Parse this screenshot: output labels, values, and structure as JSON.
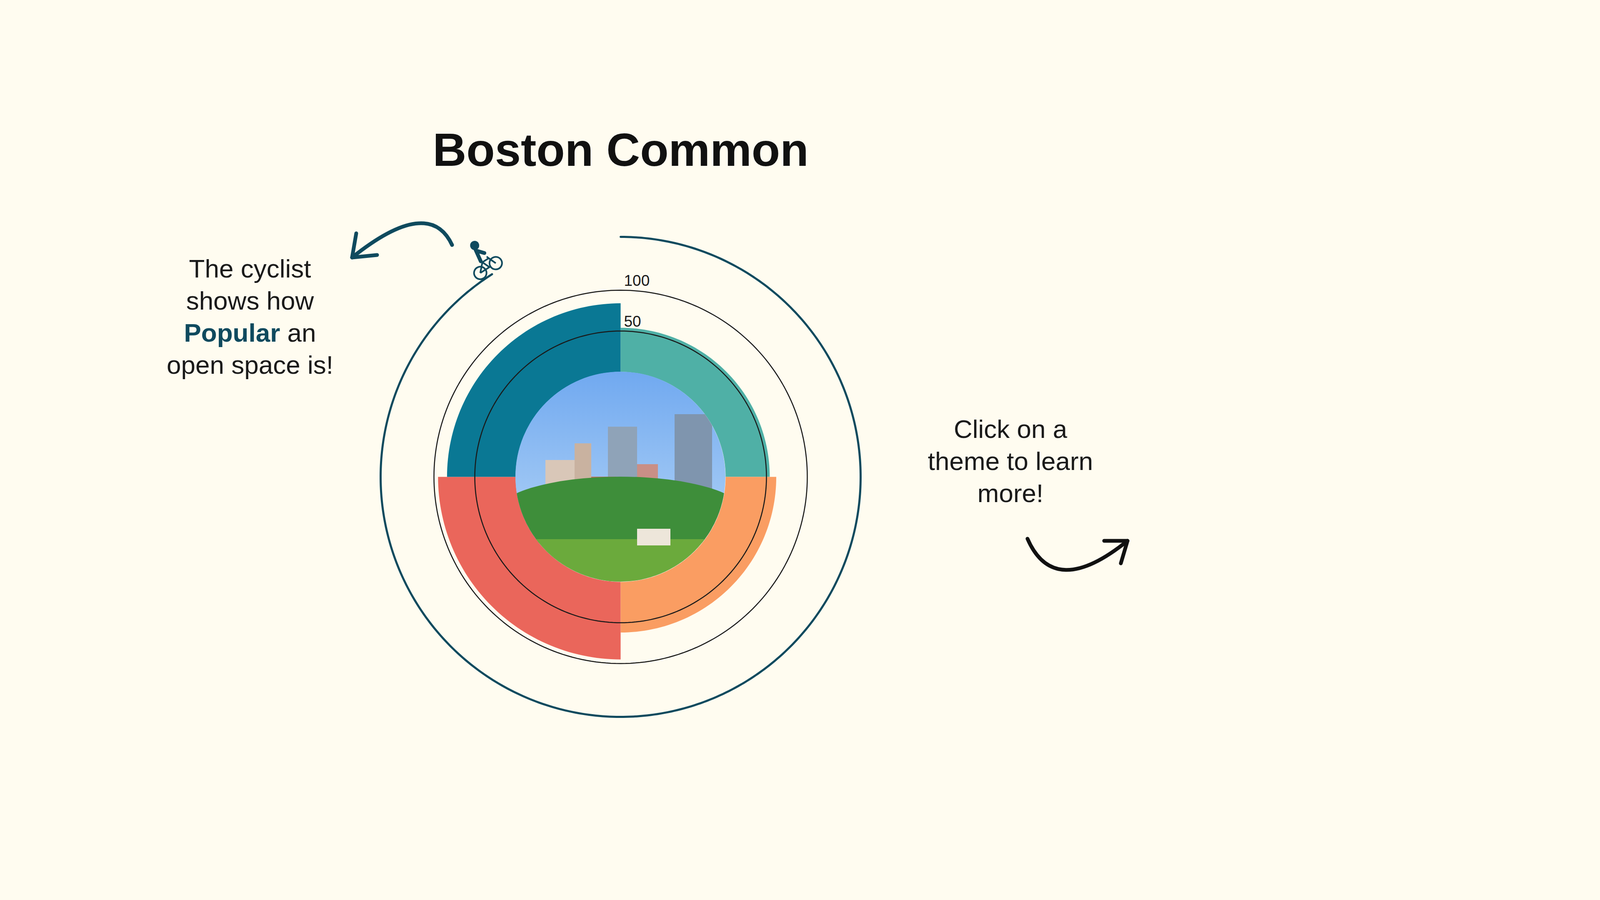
{
  "chart_data": {
    "type": "radial_bar",
    "title": "Boston Common",
    "categories": [
      null,
      null,
      null,
      null
    ],
    "values": [
      54,
      62,
      95,
      84
    ],
    "colors": [
      "#4FB0A6",
      "#FA9D62",
      "#EA665B",
      "#0A7894"
    ],
    "ylim": [
      0,
      100
    ],
    "yticks": [
      50,
      100
    ],
    "popularity": 91,
    "popularity_lim": [
      0,
      100
    ],
    "popularity_color": "#0F4A5E",
    "annotations": [
      {
        "lines": [
          [
            "The cyclist"
          ],
          [
            "shows how"
          ],
          [
            "Popular",
            " an"
          ],
          [
            "open space is!"
          ]
        ],
        "highlight": "Popular"
      },
      {
        "lines": [
          [
            "Click on a"
          ],
          [
            "theme to learn"
          ],
          [
            "more!"
          ]
        ]
      }
    ]
  }
}
